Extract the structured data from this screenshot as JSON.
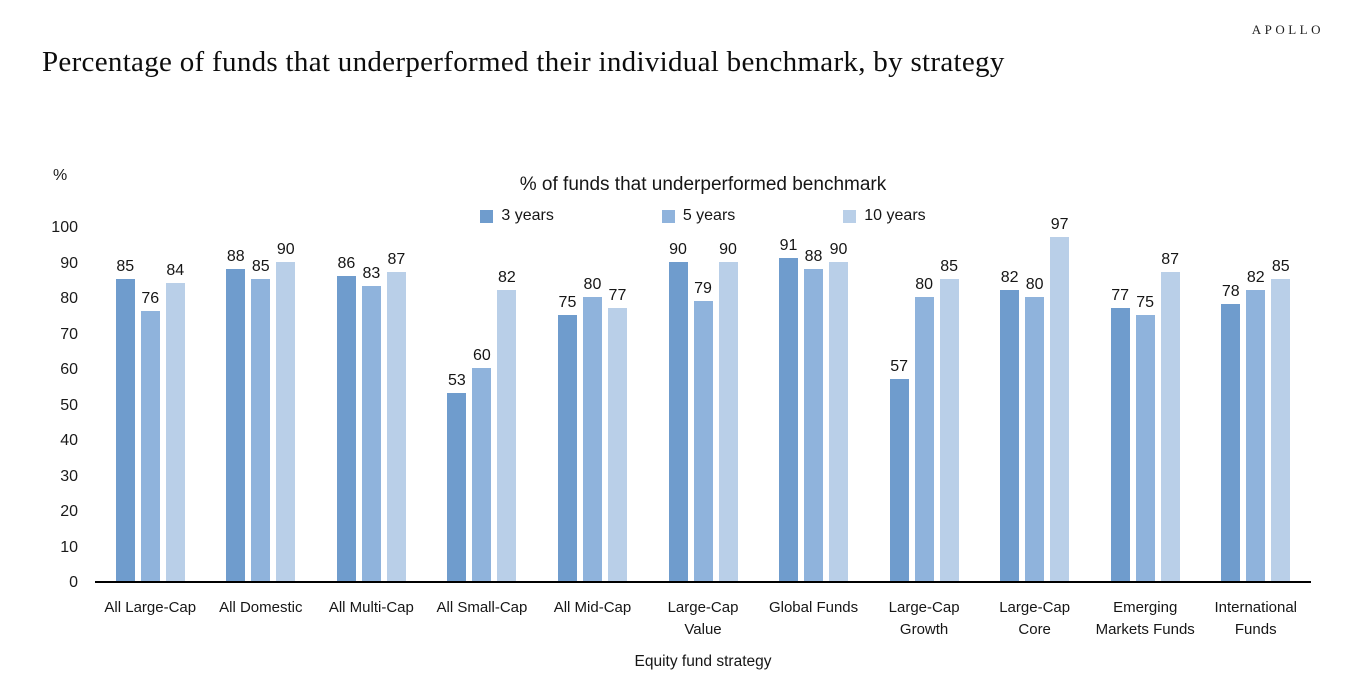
{
  "brand": {
    "logo": "APOLLO"
  },
  "page_title": "Percentage of funds that underperformed their individual benchmark, by strategy",
  "chart_data": {
    "type": "bar",
    "title": "% of funds that underperformed benchmark",
    "xlabel": "Equity fund strategy",
    "ylabel": "%",
    "ylim": [
      0,
      100
    ],
    "ytick_step": 10,
    "grid": false,
    "legend_position": "top-center",
    "categories": [
      "All Large-Cap",
      "All Domestic",
      "All Multi-Cap",
      "All Small-Cap",
      "All Mid-Cap",
      "Large-Cap Value",
      "Global Funds",
      "Large-Cap Growth",
      "Large-Cap Core",
      "Emerging Markets Funds",
      "International Funds"
    ],
    "series": [
      {
        "name": "3 years",
        "color": "#6f9ccd",
        "values": [
          85,
          88,
          86,
          53,
          75,
          90,
          91,
          57,
          82,
          77,
          78
        ]
      },
      {
        "name": "5 years",
        "color": "#8fb3dc",
        "values": [
          76,
          85,
          83,
          60,
          80,
          79,
          88,
          80,
          80,
          75,
          82
        ]
      },
      {
        "name": "10 years",
        "color": "#b9cfe8",
        "values": [
          84,
          90,
          87,
          82,
          77,
          90,
          90,
          85,
          97,
          87,
          85
        ]
      }
    ]
  }
}
